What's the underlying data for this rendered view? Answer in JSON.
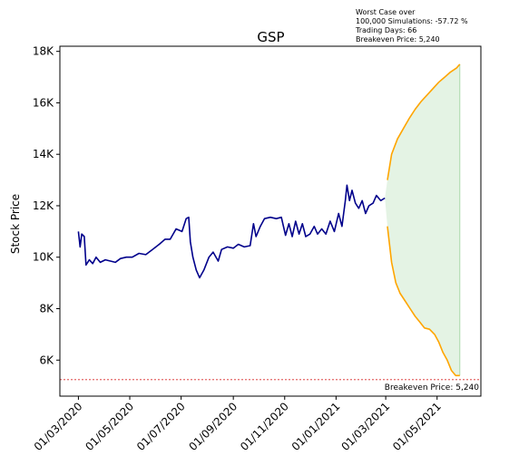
{
  "chart_data": {
    "type": "line",
    "title": "GSP",
    "xlabel": "",
    "ylabel": "Stock Price",
    "ylim": [
      4600,
      18200
    ],
    "x_tick_labels": [
      "01/03/2020",
      "01/05/2020",
      "01/07/2020",
      "01/09/2020",
      "01/11/2020",
      "01/01/2021",
      "01/03/2021",
      "01/05/2021"
    ],
    "y_ticks": [
      6000,
      8000,
      10000,
      12000,
      14000,
      16000,
      18000
    ],
    "y_tick_labels": [
      "6K",
      "8K",
      "10K",
      "12K",
      "14K",
      "16K",
      "18K"
    ],
    "grid": false,
    "annotation_lines": [
      "Worst Case over",
      "100,000 Simulations: -57.72 %",
      "Trading Days: 66",
      "Breakeven Price: 5,240"
    ],
    "breakeven_label": "Breakeven Price: 5,240",
    "breakeven_value": 5240,
    "series": [
      {
        "color": "#00008b",
        "points": [
          [
            "2020-03-01",
            11000
          ],
          [
            "2020-03-03",
            10400
          ],
          [
            "2020-03-05",
            10900
          ],
          [
            "2020-03-08",
            10800
          ],
          [
            "2020-03-10",
            9700
          ],
          [
            "2020-03-14",
            9900
          ],
          [
            "2020-03-18",
            9750
          ],
          [
            "2020-03-22",
            10000
          ],
          [
            "2020-03-27",
            9800
          ],
          [
            "2020-04-02",
            9900
          ],
          [
            "2020-04-08",
            9850
          ],
          [
            "2020-04-14",
            9800
          ],
          [
            "2020-04-20",
            9950
          ],
          [
            "2020-04-27",
            10000
          ],
          [
            "2020-05-04",
            10000
          ],
          [
            "2020-05-12",
            10150
          ],
          [
            "2020-05-20",
            10100
          ],
          [
            "2020-05-28",
            10300
          ],
          [
            "2020-06-05",
            10500
          ],
          [
            "2020-06-12",
            10700
          ],
          [
            "2020-06-18",
            10700
          ],
          [
            "2020-06-25",
            11100
          ],
          [
            "2020-07-02",
            11000
          ],
          [
            "2020-07-07",
            11500
          ],
          [
            "2020-07-10",
            11550
          ],
          [
            "2020-07-12",
            10600
          ],
          [
            "2020-07-15",
            10000
          ],
          [
            "2020-07-19",
            9500
          ],
          [
            "2020-07-23",
            9200
          ],
          [
            "2020-07-28",
            9500
          ],
          [
            "2020-08-03",
            10000
          ],
          [
            "2020-08-08",
            10200
          ],
          [
            "2020-08-14",
            9850
          ],
          [
            "2020-08-18",
            10300
          ],
          [
            "2020-08-25",
            10400
          ],
          [
            "2020-09-01",
            10350
          ],
          [
            "2020-09-07",
            10500
          ],
          [
            "2020-09-14",
            10400
          ],
          [
            "2020-09-21",
            10450
          ],
          [
            "2020-09-25",
            11300
          ],
          [
            "2020-09-28",
            10800
          ],
          [
            "2020-10-03",
            11200
          ],
          [
            "2020-10-08",
            11500
          ],
          [
            "2020-10-15",
            11550
          ],
          [
            "2020-10-22",
            11500
          ],
          [
            "2020-10-28",
            11550
          ],
          [
            "2020-11-02",
            10850
          ],
          [
            "2020-11-06",
            11300
          ],
          [
            "2020-11-10",
            10800
          ],
          [
            "2020-11-14",
            11400
          ],
          [
            "2020-11-18",
            10900
          ],
          [
            "2020-11-22",
            11300
          ],
          [
            "2020-11-26",
            10800
          ],
          [
            "2020-12-01",
            10900
          ],
          [
            "2020-12-06",
            11200
          ],
          [
            "2020-12-10",
            10900
          ],
          [
            "2020-12-15",
            11100
          ],
          [
            "2020-12-20",
            10900
          ],
          [
            "2020-12-25",
            11400
          ],
          [
            "2020-12-30",
            11000
          ],
          [
            "2021-01-04",
            11700
          ],
          [
            "2021-01-08",
            11200
          ],
          [
            "2021-01-12",
            12200
          ],
          [
            "2021-01-14",
            12800
          ],
          [
            "2021-01-17",
            12200
          ],
          [
            "2021-01-20",
            12600
          ],
          [
            "2021-01-24",
            12100
          ],
          [
            "2021-01-28",
            11900
          ],
          [
            "2021-02-01",
            12200
          ],
          [
            "2021-02-05",
            11700
          ],
          [
            "2021-02-09",
            12000
          ],
          [
            "2021-02-14",
            12100
          ],
          [
            "2021-02-18",
            12400
          ],
          [
            "2021-02-23",
            12200
          ],
          [
            "2021-02-28",
            12300
          ]
        ]
      },
      {
        "color": "#ffa500",
        "points": [
          [
            "2021-03-03",
            13000
          ],
          [
            "2021-03-08",
            14000
          ],
          [
            "2021-03-15",
            14600
          ],
          [
            "2021-03-22",
            15000
          ],
          [
            "2021-03-29",
            15400
          ],
          [
            "2021-04-05",
            15750
          ],
          [
            "2021-04-12",
            16050
          ],
          [
            "2021-04-19",
            16300
          ],
          [
            "2021-04-26",
            16550
          ],
          [
            "2021-05-03",
            16800
          ],
          [
            "2021-05-10",
            17000
          ],
          [
            "2021-05-17",
            17200
          ],
          [
            "2021-05-24",
            17350
          ],
          [
            "2021-05-28",
            17500
          ]
        ]
      },
      {
        "color": "#ffa500",
        "points": [
          [
            "2021-03-03",
            11200
          ],
          [
            "2021-03-08",
            9800
          ],
          [
            "2021-03-13",
            9000
          ],
          [
            "2021-03-18",
            8600
          ],
          [
            "2021-03-24",
            8300
          ],
          [
            "2021-03-30",
            8000
          ],
          [
            "2021-04-05",
            7700
          ],
          [
            "2021-04-10",
            7500
          ],
          [
            "2021-04-16",
            7250
          ],
          [
            "2021-04-22",
            7200
          ],
          [
            "2021-04-28",
            7000
          ],
          [
            "2021-05-03",
            6700
          ],
          [
            "2021-05-08",
            6300
          ],
          [
            "2021-05-13",
            6000
          ],
          [
            "2021-05-18",
            5600
          ],
          [
            "2021-05-23",
            5400
          ],
          [
            "2021-05-28",
            5400
          ]
        ]
      }
    ],
    "band": {
      "color": "#2ca02c",
      "start": "2021-02-28",
      "end": "2021-05-28",
      "start_value": 12300
    }
  }
}
